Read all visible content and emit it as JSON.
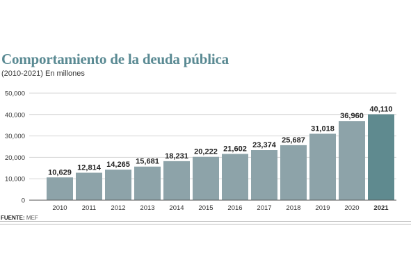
{
  "header": {
    "title": "Comportamiento de la deuda pública",
    "subtitle": "(2010-2021) En millones"
  },
  "source": {
    "label": "FUENTE:",
    "text": "MEF"
  },
  "colors": {
    "title": "#5a8a93",
    "bar": "#8da3a9",
    "bar_highlight": "#5f8a8f",
    "label": "#222222"
  },
  "chart_data": {
    "type": "bar",
    "categories": [
      "2010",
      "2011",
      "2012",
      "2013",
      "2014",
      "2015",
      "2016",
      "2017",
      "2018",
      "2019",
      "2020",
      "2021"
    ],
    "values": [
      10629,
      12814,
      14265,
      15681,
      18231,
      20222,
      21602,
      23374,
      25687,
      31018,
      36960,
      40110
    ],
    "data_labels": [
      "10,629",
      "12,814",
      "14,265",
      "15,681",
      "18,231",
      "20,222",
      "21,602",
      "23,374",
      "25,687",
      "31,018",
      "36,960",
      "40,110"
    ],
    "highlight_category": "2021",
    "y_ticks": [
      "0",
      "10,000",
      "20,000",
      "30,000",
      "40,000",
      "50,000"
    ],
    "ylim": [
      0,
      50000
    ],
    "grid": true,
    "legend": "none"
  }
}
